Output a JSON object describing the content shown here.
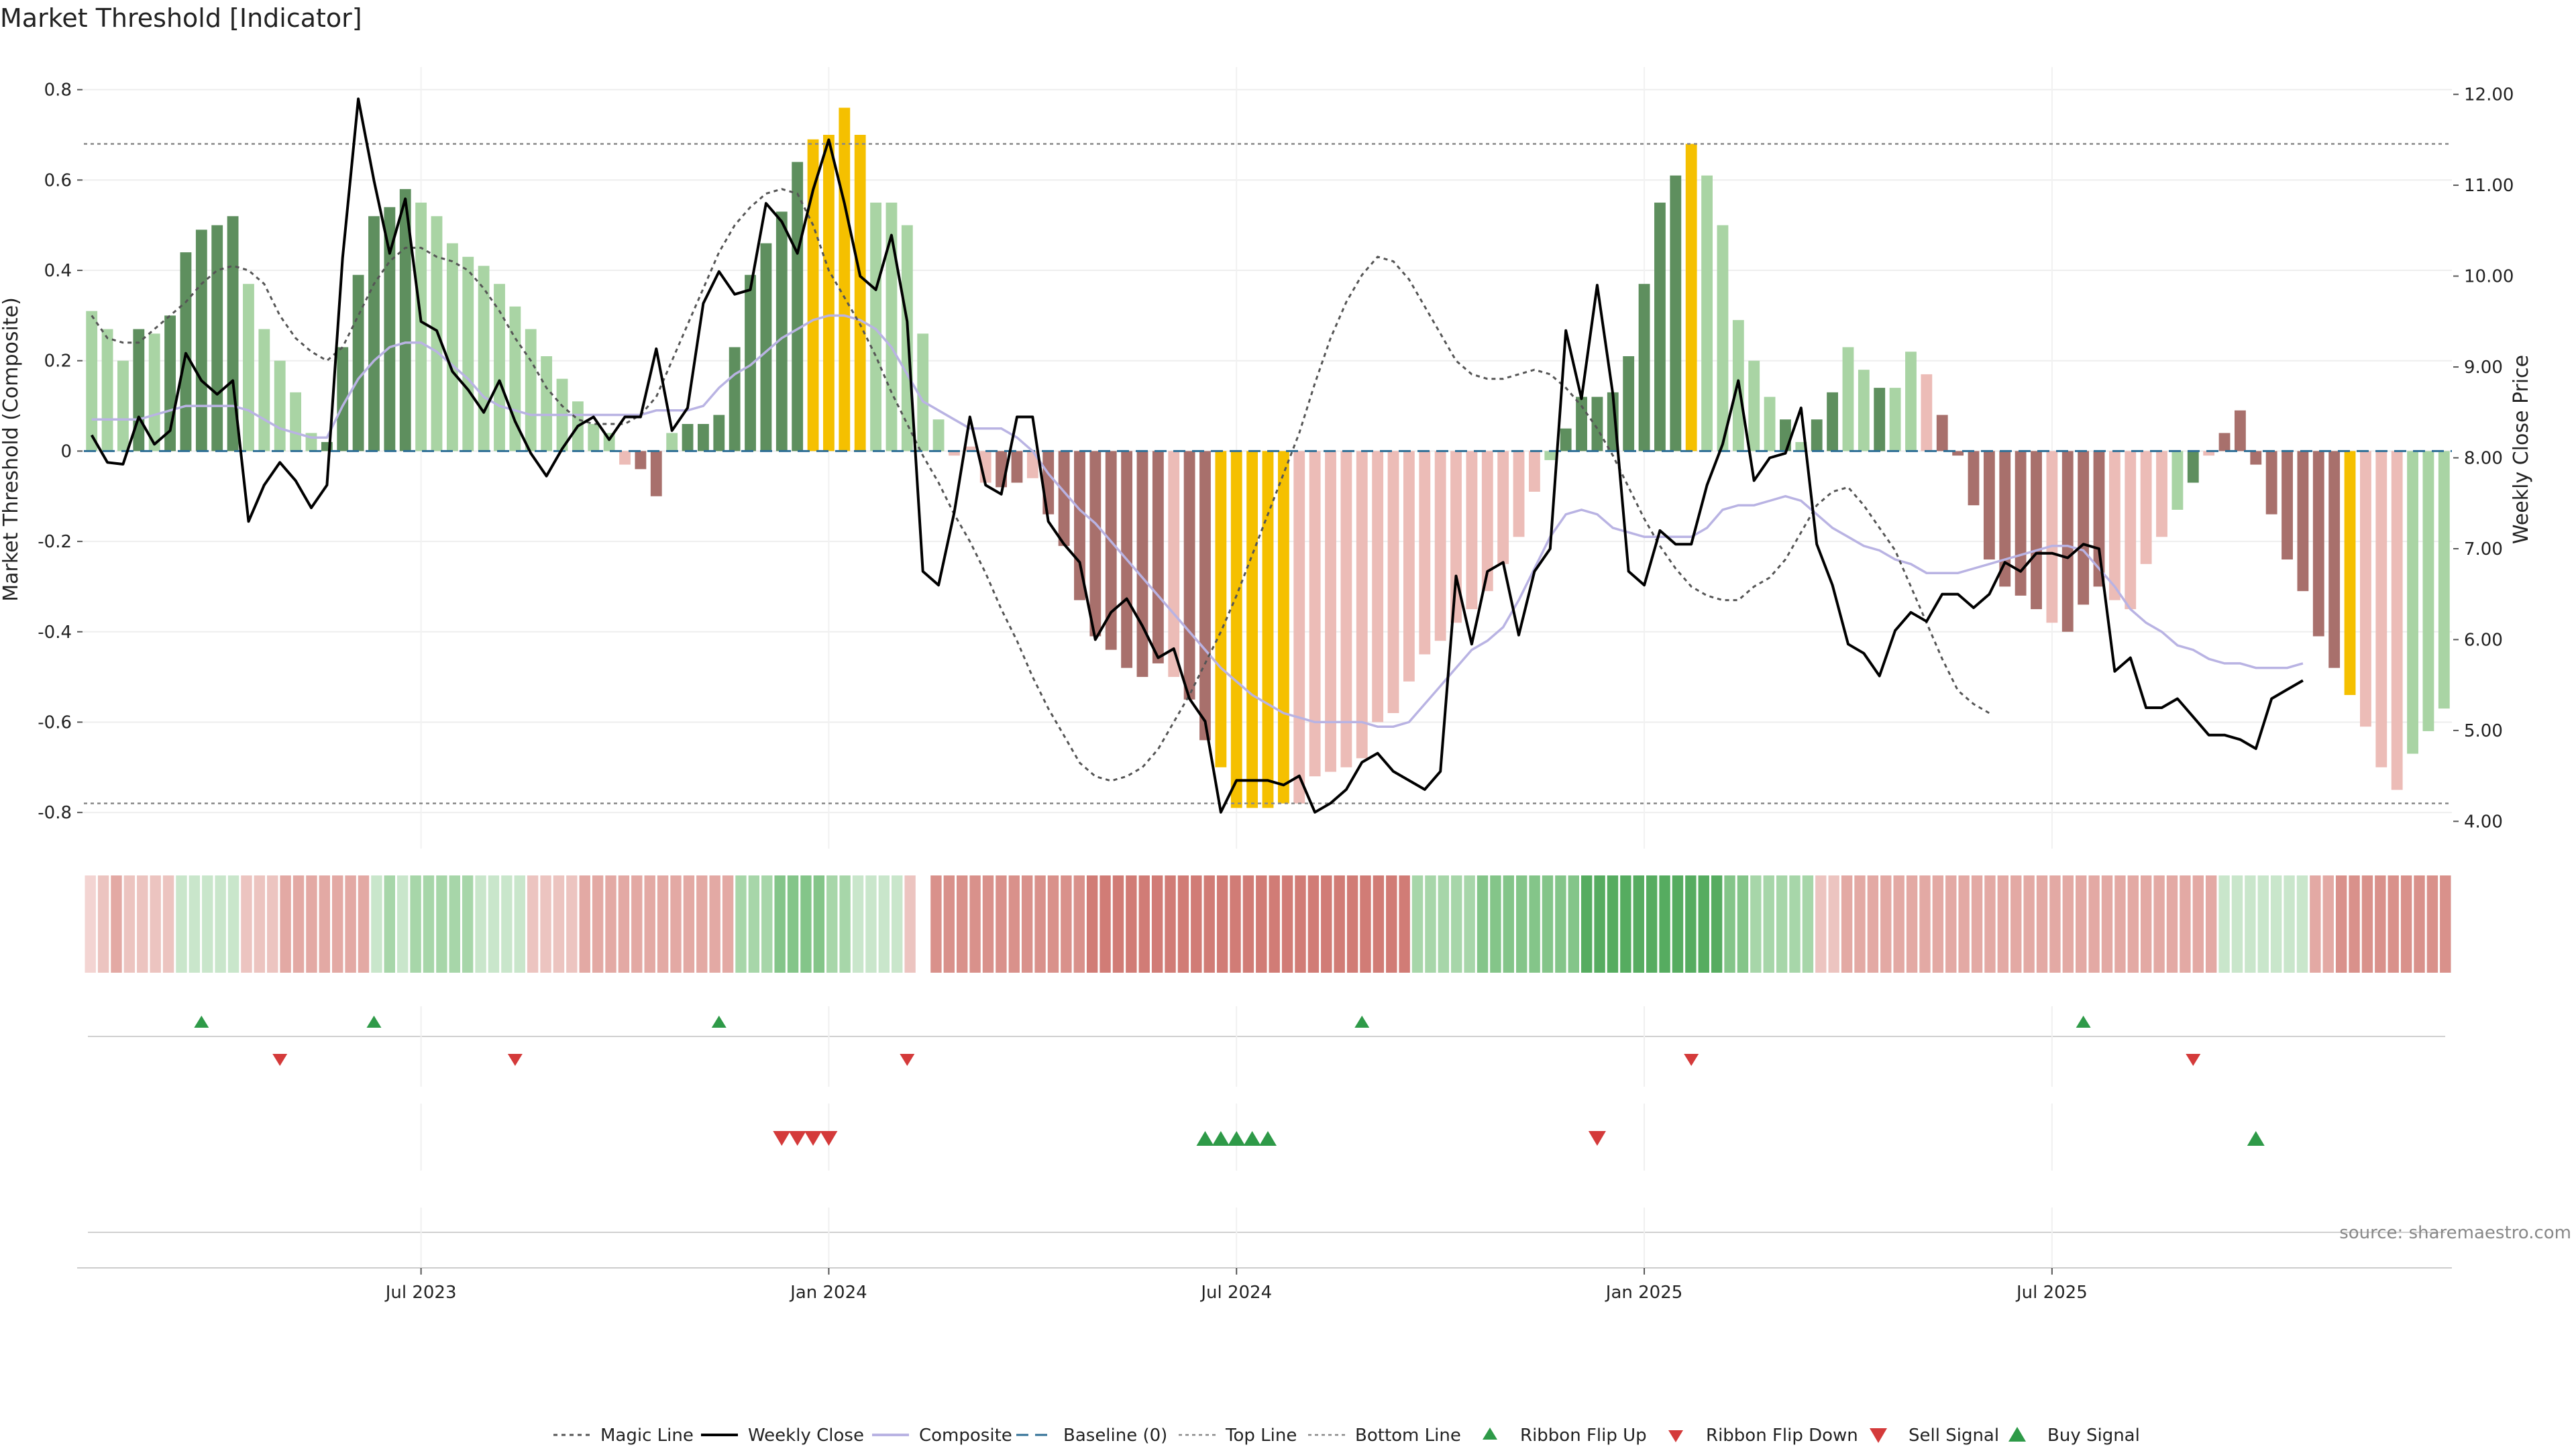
{
  "chart_data": {
    "type": "bar",
    "title": "Market Threshold [Indicator]",
    "ylabel_left": "Market Threshold (Composite)",
    "ylabel_right": "Weekly Close Price",
    "ylim_left": [
      -0.88,
      0.85
    ],
    "ylim_right": [
      3.7,
      12.3
    ],
    "yticks_left": [
      "0.8",
      "0.6",
      "0.4",
      "0.2",
      "0",
      "-0.2",
      "-0.4",
      "-0.6",
      "-0.8"
    ],
    "yticks_right": [
      "12.00",
      "11.00",
      "10.00",
      "9.00",
      "8.00",
      "7.00",
      "6.00",
      "5.00",
      "4.00"
    ],
    "xticks": [
      {
        "label": "Jul 2023",
        "index": 21
      },
      {
        "label": "Jan 2024",
        "index": 47
      },
      {
        "label": "Jul 2024",
        "index": 73
      },
      {
        "label": "Jan 2025",
        "index": 99
      },
      {
        "label": "Jul 2025",
        "index": 125
      }
    ],
    "top_line": 0.68,
    "bottom_line": -0.78,
    "baseline": 0,
    "composite_bars": [
      0.31,
      0.27,
      0.2,
      0.27,
      0.26,
      0.3,
      0.44,
      0.49,
      0.5,
      0.52,
      0.37,
      0.27,
      0.2,
      0.13,
      0.04,
      0.02,
      0.23,
      0.39,
      0.52,
      0.54,
      0.58,
      0.55,
      0.52,
      0.46,
      0.43,
      0.41,
      0.37,
      0.32,
      0.27,
      0.21,
      0.16,
      0.11,
      0.06,
      0.04,
      -0.03,
      -0.04,
      -0.1,
      0.04,
      0.06,
      0.06,
      0.08,
      0.23,
      0.39,
      0.46,
      0.53,
      0.64,
      0.69,
      0.7,
      0.76,
      0.7,
      0.55,
      0.55,
      0.5,
      0.26,
      0.07,
      -0.01,
      0.01,
      -0.07,
      -0.08,
      -0.07,
      -0.06,
      -0.14,
      -0.21,
      -0.33,
      -0.41,
      -0.44,
      -0.48,
      -0.5,
      -0.47,
      -0.5,
      -0.55,
      -0.64,
      -0.7,
      -0.79,
      -0.79,
      -0.79,
      -0.78,
      -0.78,
      -0.72,
      -0.71,
      -0.7,
      -0.68,
      -0.6,
      -0.58,
      -0.51,
      -0.45,
      -0.42,
      -0.38,
      -0.35,
      -0.31,
      -0.25,
      -0.19,
      -0.09,
      -0.02,
      0.05,
      0.12,
      0.12,
      0.13,
      0.21,
      0.37,
      0.55,
      0.61,
      0.68,
      0.61,
      0.5,
      0.29,
      0.2,
      0.12,
      0.07,
      0.02,
      0.07,
      0.13,
      0.23,
      0.18,
      0.14,
      0.14,
      0.22,
      0.17,
      0.08,
      -0.01,
      -0.12,
      -0.24,
      -0.3,
      -0.32,
      -0.35,
      -0.38,
      -0.4,
      -0.34,
      -0.3,
      -0.33,
      -0.35,
      -0.25,
      -0.19,
      -0.13,
      -0.07,
      -0.01,
      0.04,
      0.09,
      -0.03,
      -0.14,
      -0.24,
      -0.31,
      -0.41,
      -0.48,
      -0.54,
      -0.61,
      -0.7,
      -0.75,
      -0.67,
      -0.62,
      -0.57
    ],
    "bar_fill_codes": [
      "L",
      "L",
      "L",
      "D",
      "L",
      "D",
      "D",
      "D",
      "D",
      "D",
      "L",
      "L",
      "L",
      "L",
      "L",
      "D",
      "D",
      "D",
      "D",
      "D",
      "D",
      "L",
      "L",
      "L",
      "L",
      "L",
      "L",
      "L",
      "L",
      "L",
      "L",
      "L",
      "L",
      "L",
      "P",
      "R",
      "R",
      "L",
      "D",
      "D",
      "D",
      "D",
      "D",
      "D",
      "D",
      "D",
      "Y",
      "Y",
      "Y",
      "Y",
      "L",
      "L",
      "L",
      "L",
      "L",
      "P",
      "P",
      "P",
      "R",
      "R",
      "P",
      "R",
      "R",
      "R",
      "R",
      "R",
      "R",
      "R",
      "R",
      "P",
      "R",
      "R",
      "Y",
      "Y",
      "Y",
      "Y",
      "Y",
      "P",
      "P",
      "P",
      "P",
      "P",
      "P",
      "P",
      "P",
      "P",
      "P",
      "P",
      "P",
      "P",
      "P",
      "P",
      "P",
      "L",
      "D",
      "D",
      "D",
      "D",
      "D",
      "D",
      "D",
      "D",
      "Y",
      "L",
      "L",
      "L",
      "L",
      "L",
      "D",
      "L",
      "D",
      "D",
      "L",
      "L",
      "D",
      "L",
      "L",
      "P",
      "R",
      "R",
      "R",
      "R",
      "R",
      "R",
      "R",
      "P",
      "R",
      "R",
      "R",
      "P",
      "P",
      "P",
      "P",
      "L",
      "D",
      "P",
      "R",
      "R",
      "R",
      "R",
      "R",
      "R",
      "R",
      "R",
      "Y",
      "P",
      "P",
      "P"
    ],
    "weekly_close": [
      8.25,
      7.95,
      7.93,
      8.45,
      8.15,
      8.3,
      9.15,
      8.85,
      8.7,
      8.85,
      7.3,
      7.7,
      7.95,
      7.75,
      7.45,
      7.7,
      10.2,
      11.95,
      11.05,
      10.25,
      10.85,
      9.5,
      9.4,
      8.95,
      8.75,
      8.5,
      8.85,
      8.4,
      8.05,
      7.8,
      8.1,
      8.35,
      8.45,
      8.2,
      8.45,
      8.45,
      9.2,
      8.3,
      8.55,
      9.7,
      10.05,
      9.8,
      9.85,
      10.8,
      10.6,
      10.25,
      10.95,
      11.5,
      10.8,
      10.0,
      9.85,
      10.45,
      9.5,
      6.75,
      6.6,
      7.4,
      8.45,
      7.7,
      7.6,
      8.45,
      8.45,
      7.3,
      7.05,
      6.85,
      6.0,
      6.3,
      6.45,
      6.15,
      5.8,
      5.9,
      5.35,
      5.1,
      4.1,
      4.45,
      4.45,
      4.45,
      4.4,
      4.5,
      4.1,
      4.2,
      4.35,
      4.65,
      4.75,
      4.55,
      4.45,
      4.35,
      4.55,
      6.7,
      5.95,
      6.75,
      6.85,
      6.05,
      6.75,
      7.0,
      9.4,
      8.65,
      9.9,
      8.7,
      6.75,
      6.6,
      7.2,
      7.05,
      7.05,
      7.7,
      8.15,
      8.85,
      7.75,
      8.0,
      8.05,
      8.55,
      7.05,
      6.6,
      5.95,
      5.85,
      5.6,
      6.1,
      6.3,
      6.2,
      6.5,
      6.5,
      6.35,
      6.5,
      6.85,
      6.75,
      6.95,
      6.95,
      6.9,
      7.05,
      7.0,
      5.65,
      5.8,
      5.25,
      5.25,
      5.35,
      5.15,
      4.95,
      4.95,
      4.9,
      4.8,
      5.35,
      5.45,
      5.55
    ],
    "composite_line": [
      0.07,
      0.07,
      0.07,
      0.07,
      0.08,
      0.09,
      0.1,
      0.1,
      0.1,
      0.1,
      0.09,
      0.07,
      0.05,
      0.04,
      0.03,
      0.03,
      0.1,
      0.16,
      0.2,
      0.23,
      0.24,
      0.24,
      0.22,
      0.19,
      0.16,
      0.12,
      0.1,
      0.09,
      0.08,
      0.08,
      0.08,
      0.08,
      0.08,
      0.08,
      0.08,
      0.08,
      0.09,
      0.09,
      0.09,
      0.1,
      0.14,
      0.17,
      0.19,
      0.22,
      0.25,
      0.27,
      0.29,
      0.3,
      0.3,
      0.29,
      0.27,
      0.23,
      0.17,
      0.11,
      0.09,
      0.07,
      0.05,
      0.05,
      0.05,
      0.03,
      0.0,
      -0.05,
      -0.09,
      -0.13,
      -0.16,
      -0.2,
      -0.24,
      -0.28,
      -0.32,
      -0.36,
      -0.4,
      -0.44,
      -0.48,
      -0.51,
      -0.54,
      -0.56,
      -0.58,
      -0.59,
      -0.6,
      -0.6,
      -0.6,
      -0.6,
      -0.61,
      -0.61,
      -0.6,
      -0.56,
      -0.52,
      -0.48,
      -0.44,
      -0.42,
      -0.39,
      -0.33,
      -0.26,
      -0.19,
      -0.14,
      -0.13,
      -0.14,
      -0.17,
      -0.18,
      -0.19,
      -0.19,
      -0.19,
      -0.19,
      -0.17,
      -0.13,
      -0.12,
      -0.12,
      -0.11,
      -0.1,
      -0.11,
      -0.14,
      -0.17,
      -0.19,
      -0.21,
      -0.22,
      -0.24,
      -0.25,
      -0.27,
      -0.27,
      -0.27,
      -0.26,
      -0.25,
      -0.24,
      -0.23,
      -0.22,
      -0.21,
      -0.21,
      -0.22,
      -0.26,
      -0.3,
      -0.35,
      -0.38,
      -0.4,
      -0.43,
      -0.44,
      -0.46,
      -0.47,
      -0.47,
      -0.48,
      -0.48,
      -0.48,
      -0.47
    ],
    "magic_line": [
      0.3,
      0.25,
      0.24,
      0.24,
      0.27,
      0.3,
      0.33,
      0.37,
      0.4,
      0.41,
      0.4,
      0.37,
      0.3,
      0.25,
      0.22,
      0.2,
      0.23,
      0.3,
      0.37,
      0.42,
      0.45,
      0.45,
      0.43,
      0.42,
      0.4,
      0.36,
      0.31,
      0.25,
      0.2,
      0.14,
      0.1,
      0.07,
      0.06,
      0.06,
      0.06,
      0.08,
      0.12,
      0.2,
      0.28,
      0.36,
      0.44,
      0.5,
      0.54,
      0.57,
      0.58,
      0.57,
      0.5,
      0.4,
      0.34,
      0.28,
      0.21,
      0.13,
      0.06,
      -0.01,
      -0.07,
      -0.14,
      -0.2,
      -0.27,
      -0.35,
      -0.42,
      -0.5,
      -0.57,
      -0.63,
      -0.69,
      -0.72,
      -0.73,
      -0.72,
      -0.7,
      -0.66,
      -0.6,
      -0.54,
      -0.47,
      -0.4,
      -0.32,
      -0.23,
      -0.14,
      -0.05,
      0.04,
      0.15,
      0.25,
      0.33,
      0.39,
      0.43,
      0.42,
      0.38,
      0.32,
      0.26,
      0.2,
      0.17,
      0.16,
      0.16,
      0.17,
      0.18,
      0.17,
      0.14,
      0.1,
      0.05,
      -0.01,
      -0.08,
      -0.15,
      -0.21,
      -0.26,
      -0.3,
      -0.32,
      -0.33,
      -0.33,
      -0.3,
      -0.28,
      -0.24,
      -0.18,
      -0.12,
      -0.09,
      -0.08,
      -0.12,
      -0.17,
      -0.22,
      -0.3,
      -0.38,
      -0.46,
      -0.53,
      -0.56,
      -0.58
    ],
    "magic_line_start_index": 0,
    "ribbon_codes": [
      "pg",
      "r1",
      "r2",
      "r1",
      "r1",
      "r1",
      "r1",
      "g1",
      "g1",
      "g1",
      "g1",
      "g1",
      "r1",
      "r1",
      "r1",
      "r2",
      "r2",
      "r2",
      "r2",
      "r2",
      "r2",
      "r2",
      "g1",
      "g2",
      "g1",
      "g2",
      "g2",
      "g2",
      "g2",
      "g2",
      "g1",
      "g1",
      "g1",
      "g1",
      "r1",
      "r1",
      "r1",
      "r1",
      "r2",
      "r2",
      "r2",
      "r2",
      "r2",
      "r2",
      "r2",
      "r2",
      "r2",
      "r2",
      "r2",
      "r2",
      "g2",
      "g2",
      "g2",
      "g3",
      "g3",
      "g3",
      "g3",
      "g2",
      "g2",
      "g1",
      "g1",
      "g1",
      "g1",
      "r1",
      "x",
      "r3",
      "r3",
      "r3",
      "r3",
      "r3",
      "r3",
      "r3",
      "r3",
      "r3",
      "r3",
      "r3",
      "r3",
      "r4",
      "r4",
      "r4",
      "r4",
      "r4",
      "r4",
      "r4",
      "r4",
      "r4",
      "r4",
      "r4",
      "r4",
      "r4",
      "r4",
      "r4",
      "r4",
      "r4",
      "r4",
      "r4",
      "r4",
      "r4",
      "r4",
      "r4",
      "r4",
      "r4",
      "g2",
      "g2",
      "g2",
      "g2",
      "g2",
      "g3",
      "g3",
      "g3",
      "g3",
      "g3",
      "g3",
      "g3",
      "g3",
      "g4",
      "g4",
      "g4",
      "g4",
      "g4",
      "g4",
      "g4",
      "g4",
      "g4",
      "g4",
      "g4",
      "g3",
      "g3",
      "g2",
      "g2",
      "g2",
      "g2",
      "g2",
      "r1",
      "r1",
      "r2",
      "r2",
      "r2",
      "r2",
      "r2",
      "r2",
      "r2",
      "r2",
      "r2",
      "r2",
      "r2",
      "r2",
      "r2",
      "r2",
      "r2",
      "r2",
      "r2",
      "r2",
      "r2",
      "r2",
      "r2",
      "r2",
      "r2",
      "r2",
      "r2",
      "r2",
      "r2",
      "r2",
      "r2",
      "g1",
      "g1",
      "g1",
      "g1",
      "g1",
      "g1",
      "g1",
      "r2",
      "r2",
      "r3",
      "r3",
      "r3",
      "r3",
      "r3",
      "r3",
      "r3",
      "r3",
      "r3"
    ],
    "ribbon_flip_up_at": [
      7,
      18,
      40,
      81,
      127
    ],
    "ribbon_flip_down_at": [
      12,
      27,
      52,
      102,
      134
    ],
    "sell_signals_at": [
      44,
      45,
      46,
      47,
      96
    ],
    "buy_signals_at": [
      71,
      72,
      73,
      74,
      75,
      138
    ],
    "legend": [
      "Magic Line",
      "Weekly Close",
      "Composite",
      "Baseline (0)",
      "Top Line",
      "Bottom Line",
      "Ribbon Flip Up",
      "Ribbon Flip Down",
      "Sell Signal",
      "Buy Signal"
    ]
  },
  "colors": {
    "bar_dark_green": "#5e8f5e",
    "bar_light_green": "#a9d4a4",
    "bar_dark_red": "#a8706c",
    "bar_light_red": "#ecbcb7",
    "bar_highlight": "#f5c000",
    "weekly_close": "#000000",
    "composite_line": "#b9b3e3",
    "magic_line": "#555555",
    "baseline": "#2f6f96",
    "flip_up": "#2e9a48",
    "flip_down": "#d43a3a"
  },
  "source": "source: sharemaestro.com"
}
